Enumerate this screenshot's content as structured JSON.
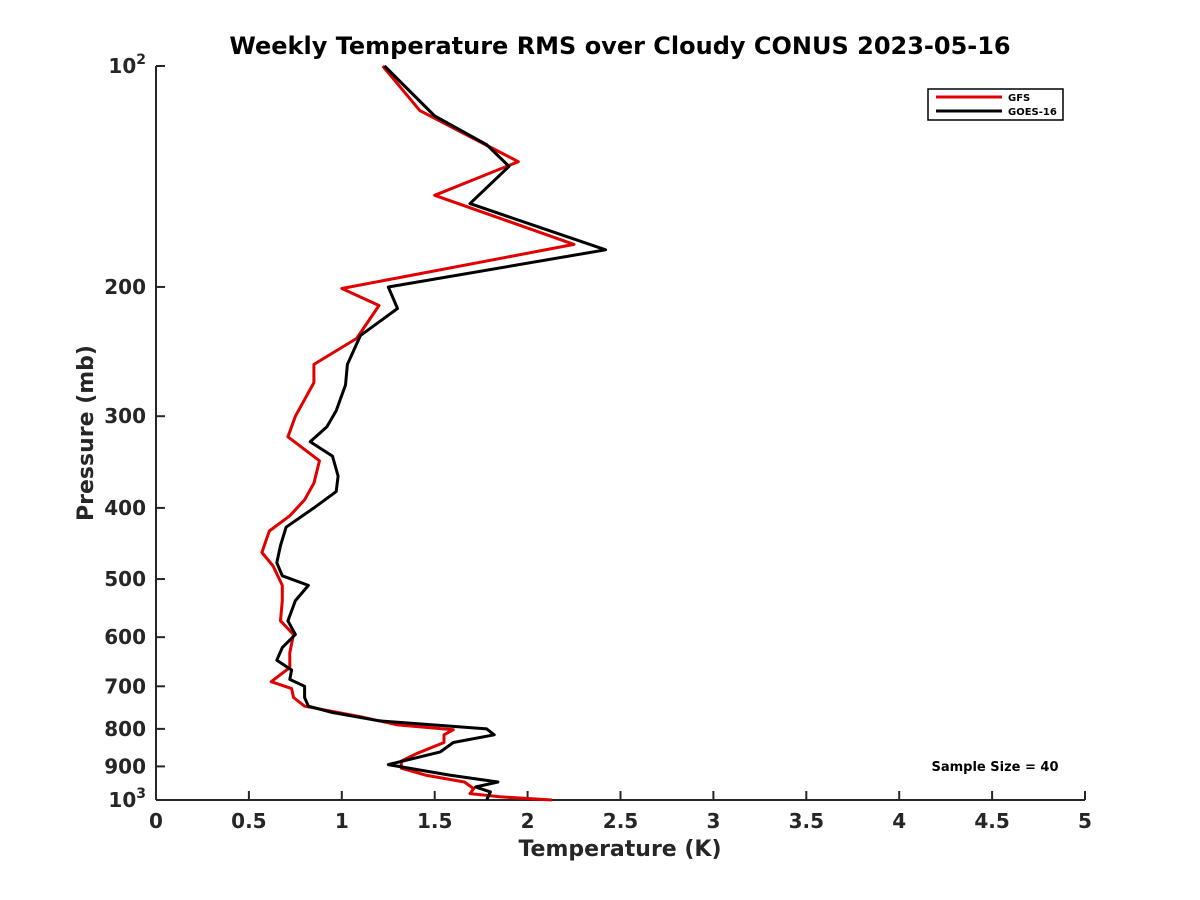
{
  "chart_data": {
    "type": "line",
    "title": "Weekly Temperature RMS over Cloudy CONUS 2023-05-16",
    "xlabel": "Temperature (K)",
    "ylabel": "Pressure (mb)",
    "xlim": [
      0,
      5
    ],
    "ylim": [
      100,
      1000
    ],
    "y_scale": "log",
    "y_reversed": true,
    "x_ticks": [
      "0",
      "0.5",
      "1",
      "1.5",
      "2",
      "2.5",
      "3",
      "3.5",
      "4",
      "4.5",
      "5"
    ],
    "y_ticks": [
      {
        "value": 100,
        "base": "10",
        "exp": "2"
      },
      {
        "value": 200,
        "label": "200"
      },
      {
        "value": 300,
        "label": "300"
      },
      {
        "value": 400,
        "label": "400"
      },
      {
        "value": 500,
        "label": "500"
      },
      {
        "value": 600,
        "label": "600"
      },
      {
        "value": 700,
        "label": "700"
      },
      {
        "value": 800,
        "label": "800"
      },
      {
        "value": 900,
        "label": "900"
      },
      {
        "value": 1000,
        "base": "10",
        "exp": "3"
      }
    ],
    "legend": "top-right",
    "annotation": "Sample Size = 40",
    "series": [
      {
        "name": "GFS",
        "color": "#e00000",
        "points": [
          [
            1.22,
            100
          ],
          [
            1.42,
            115
          ],
          [
            1.95,
            135
          ],
          [
            1.5,
            150
          ],
          [
            2.25,
            175
          ],
          [
            1.0,
            201
          ],
          [
            1.2,
            212
          ],
          [
            1.08,
            235
          ],
          [
            0.85,
            255
          ],
          [
            0.85,
            270
          ],
          [
            0.75,
            300
          ],
          [
            0.71,
            320
          ],
          [
            0.88,
            345
          ],
          [
            0.85,
            370
          ],
          [
            0.8,
            390
          ],
          [
            0.72,
            410
          ],
          [
            0.61,
            430
          ],
          [
            0.57,
            460
          ],
          [
            0.63,
            480
          ],
          [
            0.68,
            510
          ],
          [
            0.68,
            535
          ],
          [
            0.67,
            570
          ],
          [
            0.74,
            595
          ],
          [
            0.72,
            630
          ],
          [
            0.72,
            660
          ],
          [
            0.62,
            690
          ],
          [
            0.73,
            705
          ],
          [
            0.74,
            725
          ],
          [
            0.8,
            745
          ],
          [
            1.1,
            770
          ],
          [
            1.3,
            790
          ],
          [
            1.6,
            802
          ],
          [
            1.55,
            815
          ],
          [
            1.55,
            835
          ],
          [
            1.4,
            865
          ],
          [
            1.32,
            885
          ],
          [
            1.32,
            905
          ],
          [
            1.45,
            925
          ],
          [
            1.66,
            945
          ],
          [
            1.71,
            965
          ],
          [
            1.69,
            980
          ],
          [
            1.85,
            990
          ],
          [
            2.13,
            1000
          ]
        ]
      },
      {
        "name": "GOES-16",
        "color": "#000000",
        "points": [
          [
            1.23,
            100
          ],
          [
            1.5,
            117
          ],
          [
            1.78,
            128
          ],
          [
            1.9,
            137
          ],
          [
            1.69,
            154
          ],
          [
            2.42,
            178
          ],
          [
            1.25,
            200
          ],
          [
            1.3,
            214
          ],
          [
            1.1,
            233
          ],
          [
            1.03,
            255
          ],
          [
            1.02,
            272
          ],
          [
            0.97,
            295
          ],
          [
            0.92,
            310
          ],
          [
            0.83,
            325
          ],
          [
            0.95,
            340
          ],
          [
            0.98,
            362
          ],
          [
            0.97,
            380
          ],
          [
            0.85,
            400
          ],
          [
            0.7,
            425
          ],
          [
            0.67,
            450
          ],
          [
            0.65,
            475
          ],
          [
            0.68,
            495
          ],
          [
            0.82,
            510
          ],
          [
            0.75,
            535
          ],
          [
            0.71,
            570
          ],
          [
            0.75,
            595
          ],
          [
            0.68,
            620
          ],
          [
            0.65,
            645
          ],
          [
            0.73,
            665
          ],
          [
            0.72,
            685
          ],
          [
            0.8,
            700
          ],
          [
            0.8,
            725
          ],
          [
            0.82,
            745
          ],
          [
            0.95,
            760
          ],
          [
            1.2,
            780
          ],
          [
            1.78,
            800
          ],
          [
            1.82,
            815
          ],
          [
            1.6,
            835
          ],
          [
            1.53,
            860
          ],
          [
            1.25,
            895
          ],
          [
            1.58,
            925
          ],
          [
            1.84,
            945
          ],
          [
            1.72,
            960
          ],
          [
            1.8,
            975
          ],
          [
            1.78,
            1000
          ]
        ]
      }
    ]
  }
}
